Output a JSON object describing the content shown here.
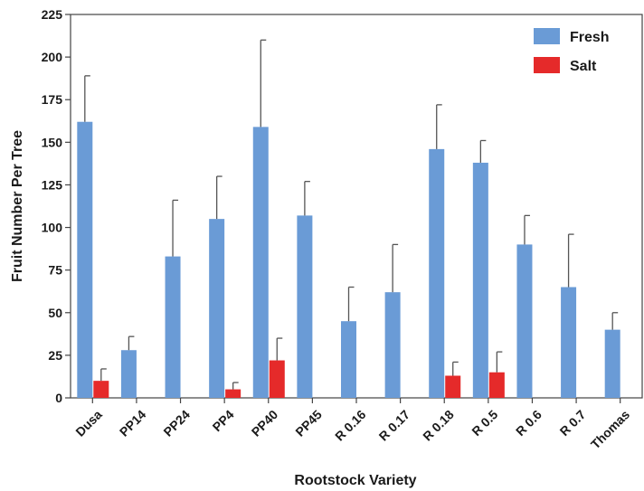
{
  "chart_data": {
    "type": "bar",
    "title": "",
    "xlabel": "Rootstock Variety",
    "ylabel": "Fruit Number Per Tree",
    "ylim": [
      0,
      225
    ],
    "yticks": [
      0,
      25,
      50,
      75,
      100,
      125,
      150,
      175,
      200,
      225
    ],
    "categories": [
      "Dusa",
      "PP14",
      "PP24",
      "PP4",
      "PP40",
      "PP45",
      "R 0.16",
      "R 0.17",
      "R 0.18",
      "R 0.5",
      "R 0.6",
      "R 0.7",
      "Thomas"
    ],
    "series": [
      {
        "name": "Fresh",
        "color": "#6a9bd6",
        "values": [
          162,
          28,
          83,
          105,
          159,
          107,
          45,
          62,
          146,
          138,
          90,
          65,
          40
        ],
        "error": [
          27,
          8,
          33,
          25,
          51,
          20,
          20,
          28,
          26,
          13,
          17,
          31,
          10
        ]
      },
      {
        "name": "Salt",
        "color": "#e52a2a",
        "values": [
          10,
          0,
          0,
          5,
          22,
          0,
          0,
          0,
          13,
          15,
          0,
          0,
          0
        ],
        "error": [
          7,
          0,
          0,
          4,
          13,
          0,
          0,
          0,
          8,
          12,
          0,
          0,
          0
        ]
      }
    ],
    "legend_position": "top-right",
    "grid": false
  }
}
